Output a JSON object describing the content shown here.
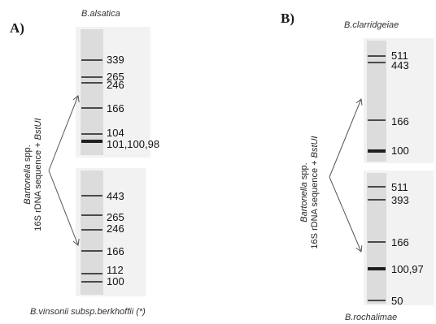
{
  "panel_a": {
    "label": "A)",
    "method_line1_italic": "Bartonella",
    "method_line1_rest": " spp.",
    "method_line2_plain": "16S rDNA sequence + ",
    "method_line2_italic": "BstUI",
    "top": {
      "species": "B.alsatica",
      "bands": [
        {
          "label": "339",
          "weight": "normal"
        },
        {
          "label": "265",
          "weight": "normal"
        },
        {
          "label": "246",
          "weight": "normal"
        },
        {
          "label": "166",
          "weight": "normal"
        },
        {
          "label": "104",
          "weight": "thin"
        },
        {
          "label": "101,100,98",
          "weight": "thick"
        }
      ]
    },
    "bottom": {
      "species": "B.vinsonii  subsp.berkhoffii (*)",
      "bands": [
        {
          "label": "443",
          "weight": "normal"
        },
        {
          "label": "265",
          "weight": "normal"
        },
        {
          "label": "246",
          "weight": "normal"
        },
        {
          "label": "166",
          "weight": "normal"
        },
        {
          "label": "112",
          "weight": "normal"
        },
        {
          "label": "100",
          "weight": "normal"
        }
      ]
    }
  },
  "panel_b": {
    "label": "B)",
    "method_line1_italic": "Bartonella",
    "method_line1_rest": " spp.",
    "method_line2_plain": "16S rDNA sequence + ",
    "method_line2_italic": "BstUI",
    "top": {
      "species": "B.clarridgeiae",
      "bands": [
        {
          "label": "511",
          "weight": "normal"
        },
        {
          "label": "443",
          "weight": "normal"
        },
        {
          "label": "166",
          "weight": "normal"
        },
        {
          "label": "100",
          "weight": "thick"
        }
      ]
    },
    "bottom": {
      "species": "B.rochalimae",
      "bands": [
        {
          "label": "511",
          "weight": "normal"
        },
        {
          "label": "393",
          "weight": "normal"
        },
        {
          "label": "166",
          "weight": "normal"
        },
        {
          "label": "100,97",
          "weight": "thick"
        },
        {
          "label": "50",
          "weight": "normal"
        }
      ]
    }
  }
}
